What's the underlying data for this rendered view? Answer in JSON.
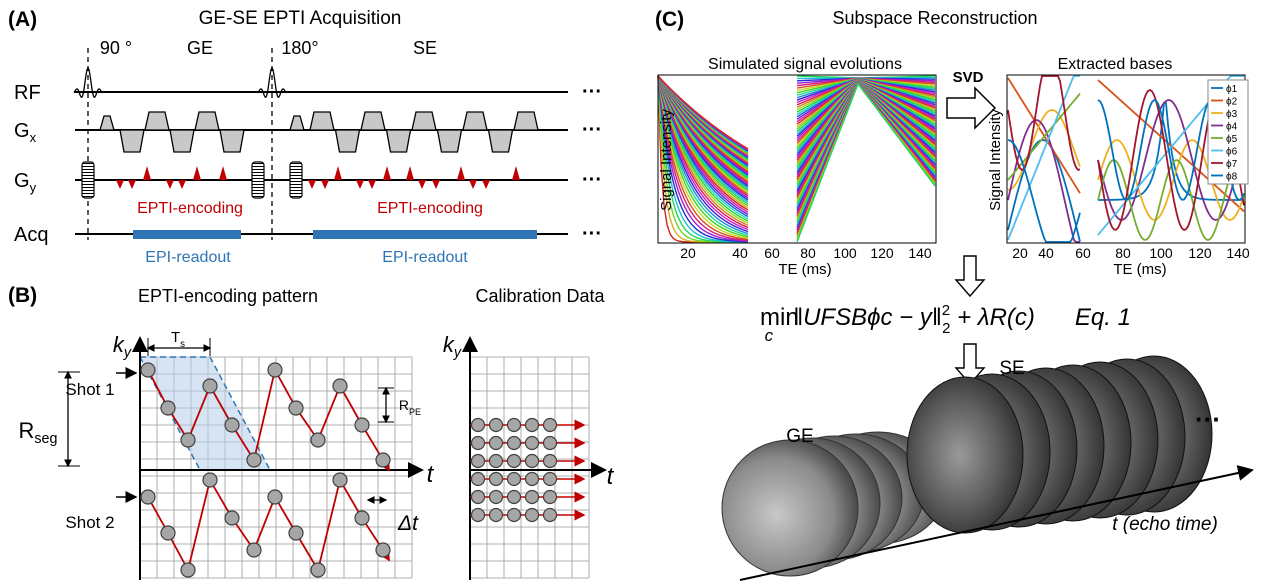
{
  "panel_a": {
    "label": "(A)",
    "title": "GE-SE EPTI Acquisition",
    "pulse_90": "90 °",
    "ge": "GE",
    "pulse_180": "180°",
    "se": "SE",
    "rows": [
      {
        "main": "RF"
      },
      {
        "main": "G",
        "sub": "x"
      },
      {
        "main": "G",
        "sub": "y"
      },
      {
        "main": "Acq"
      }
    ],
    "ellipses": [
      "···",
      "···",
      "···",
      "···"
    ],
    "encoding_labels": [
      "EPTI-encoding",
      "EPTI-encoding"
    ],
    "readout_labels": [
      "EPI-readout",
      "EPI-readout"
    ]
  },
  "panel_b": {
    "label": "(B)",
    "pattern_title": "EPTI-encoding pattern",
    "calib_title": "Calibration Data",
    "ky": {
      "main": "k",
      "sub": "y"
    },
    "ts": {
      "main": "T",
      "sub": "s"
    },
    "shot1": "Shot 1",
    "shot2": "Shot 2",
    "rseg": {
      "main": "R",
      "sub": "seg"
    },
    "rpe": {
      "main": "R",
      "sub": "PE"
    },
    "t": "t",
    "dt": "Δt",
    "calib_ky": {
      "main": "k",
      "sub": "y"
    },
    "calib_t": "t"
  },
  "panel_c": {
    "label": "(C)",
    "title": "Subspace Reconstruction",
    "sim": {
      "title": "Simulated signal evolutions",
      "ylabel": "Signal Intensity",
      "xlabel": "TE (ms)",
      "xticks": [
        "20",
        "40",
        "60",
        "80",
        "100",
        "120",
        "140"
      ]
    },
    "svd": "SVD",
    "bases": {
      "title": "Extracted bases",
      "ylabel": "Signal Intensity",
      "xlabel": "TE (ms)",
      "xticks": [
        "20",
        "40",
        "60",
        "80",
        "100",
        "120",
        "140"
      ],
      "legend": [
        "ϕ1",
        "ϕ2",
        "ϕ3",
        "ϕ4",
        "ϕ5",
        "ϕ6",
        "ϕ7",
        "ϕ8"
      ]
    },
    "equation": {
      "op": "min",
      "op_sub": "c",
      "norm": "‖UFSBϕc − y‖",
      "sup": "2",
      "sub": "2",
      "rest": " + λR(c)",
      "tag": "Eq. 1"
    },
    "ge": "GE",
    "se": "SE",
    "ellipsis": "···",
    "axis_label": "t (echo time)"
  }
}
